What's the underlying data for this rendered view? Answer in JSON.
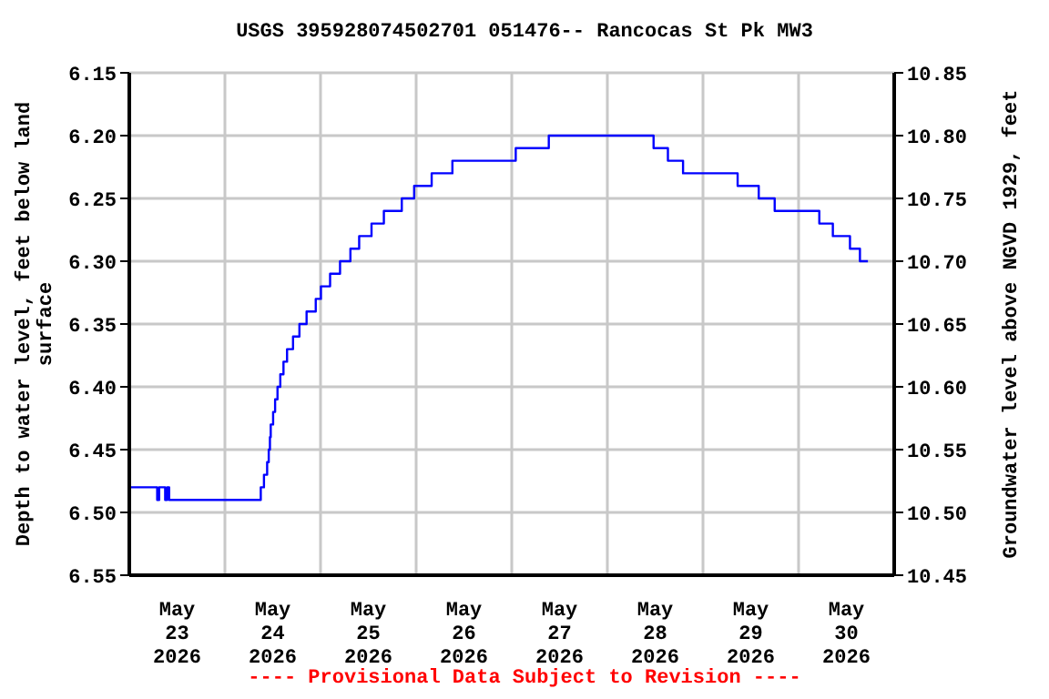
{
  "chart_data": {
    "type": "step",
    "title": "USGS 395928074502701 051476-- Rancocas St Pk MW3",
    "xlabel": null,
    "ylabel": "Depth to water level, feet below land surface",
    "y2label": "Groundwater level above NGVD 1929, feet",
    "annotations": [
      "---- Provisional Data Subject to Revision ----"
    ],
    "x": [
      "2026-05-23T00:15",
      "2026-05-23T07:00",
      "2026-05-23T07:30",
      "2026-05-23T09:00",
      "2026-05-23T09:30",
      "2026-05-23T10:00",
      "2026-05-24T09:00",
      "2026-05-24T09:48",
      "2026-05-24T10:36",
      "2026-05-24T11:00",
      "2026-05-24T11:18",
      "2026-05-24T11:30",
      "2026-05-24T12:06",
      "2026-05-24T12:36",
      "2026-05-24T13:12",
      "2026-05-24T13:54",
      "2026-05-24T14:42",
      "2026-05-24T15:36",
      "2026-05-24T17:06",
      "2026-05-24T18:42",
      "2026-05-24T20:30",
      "2026-05-24T22:48",
      "2026-05-25T00:06",
      "2026-05-25T02:24",
      "2026-05-25T04:54",
      "2026-05-25T07:30",
      "2026-05-25T09:42",
      "2026-05-25T12:48",
      "2026-05-25T15:54",
      "2026-05-25T20:24",
      "2026-05-25T23:30",
      "2026-05-26T03:54",
      "2026-05-26T09:06",
      "2026-05-27T01:00",
      "2026-05-27T09:18",
      "2026-05-28T11:36",
      "2026-05-28T15:12",
      "2026-05-28T19:00",
      "2026-05-29T08:42",
      "2026-05-29T14:00",
      "2026-05-29T18:00",
      "2026-05-30T05:12",
      "2026-05-30T08:36",
      "2026-05-30T12:54",
      "2026-05-30T15:24",
      "2026-05-30T17:24"
    ],
    "series": [
      {
        "color": "#0000ff",
        "values": [
          6.48,
          6.49,
          6.48,
          6.49,
          6.48,
          6.49,
          6.48,
          6.47,
          6.46,
          6.45,
          6.44,
          6.43,
          6.42,
          6.41,
          6.4,
          6.39,
          6.38,
          6.37,
          6.36,
          6.35,
          6.34,
          6.33,
          6.32,
          6.31,
          6.3,
          6.29,
          6.28,
          6.27,
          6.26,
          6.25,
          6.24,
          6.23,
          6.22,
          6.21,
          6.2,
          6.21,
          6.22,
          6.23,
          6.24,
          6.25,
          6.26,
          6.27,
          6.28,
          6.29,
          6.3,
          6.3
        ]
      }
    ],
    "xlim": [
      "2026-05-23T00:00",
      "2026-05-31T00:00"
    ],
    "xticks": [
      {
        "value": "2026-05-23T00:00",
        "label": null
      },
      {
        "value": "2026-05-23T12:00",
        "label": "May 23 2026"
      },
      {
        "value": "2026-05-24T00:00",
        "label": null
      },
      {
        "value": "2026-05-24T12:00",
        "label": "May 24 2026"
      },
      {
        "value": "2026-05-25T00:00",
        "label": null
      },
      {
        "value": "2026-05-25T12:00",
        "label": "May 25 2026"
      },
      {
        "value": "2026-05-26T00:00",
        "label": null
      },
      {
        "value": "2026-05-26T12:00",
        "label": "May 26 2026"
      },
      {
        "value": "2026-05-27T00:00",
        "label": null
      },
      {
        "value": "2026-05-27T12:00",
        "label": "May 27 2026"
      },
      {
        "value": "2026-05-28T00:00",
        "label": null
      },
      {
        "value": "2026-05-28T12:00",
        "label": "May 28 2026"
      },
      {
        "value": "2026-05-29T00:00",
        "label": null
      },
      {
        "value": "2026-05-29T12:00",
        "label": "May 29 2026"
      },
      {
        "value": "2026-05-30T00:00",
        "label": null
      },
      {
        "value": "2026-05-30T12:00",
        "label": "May 30 2026"
      },
      {
        "value": "2026-05-31T00:00",
        "label": null
      }
    ],
    "ylim": [
      6.55,
      6.15
    ],
    "yticks": [
      {
        "value": 6.15,
        "label": "6.15"
      },
      {
        "value": 6.2,
        "label": "6.20"
      },
      {
        "value": 6.25,
        "label": "6.25"
      },
      {
        "value": 6.3,
        "label": "6.30"
      },
      {
        "value": 6.35,
        "label": "6.35"
      },
      {
        "value": 6.4,
        "label": "6.40"
      },
      {
        "value": 6.45,
        "label": "6.45"
      },
      {
        "value": 6.5,
        "label": "6.50"
      },
      {
        "value": 6.55,
        "label": "6.55"
      }
    ],
    "y2lim": [
      10.45,
      10.85
    ],
    "y2ticks": [
      {
        "value": 10.45,
        "label": "10.45"
      },
      {
        "value": 10.5,
        "label": "10.50"
      },
      {
        "value": 10.55,
        "label": "10.55"
      },
      {
        "value": 10.6,
        "label": "10.60"
      },
      {
        "value": 10.65,
        "label": "10.65"
      },
      {
        "value": 10.7,
        "label": "10.70"
      },
      {
        "value": 10.75,
        "label": "10.75"
      },
      {
        "value": 10.8,
        "label": "10.80"
      },
      {
        "value": 10.85,
        "label": "10.85"
      }
    ],
    "grid": true
  }
}
